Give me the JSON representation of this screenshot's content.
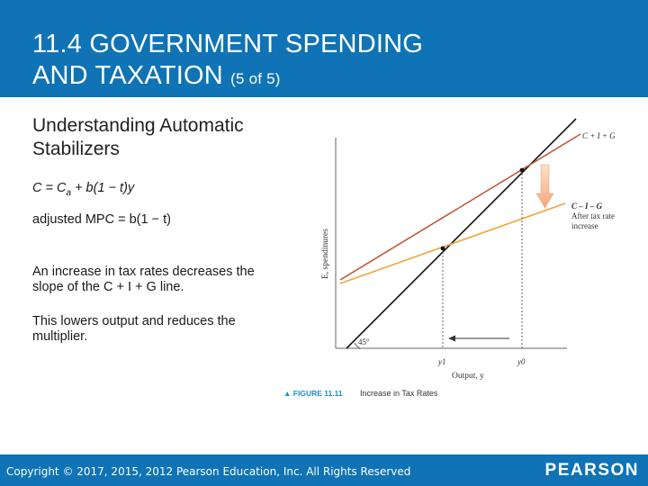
{
  "slide": {
    "title_line1": "11.4 GOVERNMENT SPENDING",
    "title_line2": "AND TAXATION",
    "title_suffix": "(5 of 5)",
    "heading": "Understanding Automatic Stabilizers",
    "formula1_prefix": "C = C",
    "formula1_sub": "a",
    "formula1_suffix": "+ b(1 − t)y",
    "formula2": "adjusted MPC = b(1 − t)",
    "para1": "An increase in tax rates decreases the slope of the C + I + G line.",
    "para2": "This lowers output and reduces the multiplier."
  },
  "figure": {
    "ylabel": "E, spendinures",
    "xlabel": "Output, y",
    "line1_label": "C + I + G",
    "line2_label": "C – I – G",
    "line2_note_1": "After tax rate",
    "line2_note_2": "increase",
    "angle_label": "45°",
    "tick_y1": "y1",
    "tick_y0": "y0",
    "caption_label": "▲ FIGURE 11.11",
    "caption_text": "Increase in Tax Rates"
  },
  "footer": {
    "copyright": "Copyright © 2017, 2015, 2012 Pearson Education, Inc. All Rights Reserved",
    "brand": "PEARSON"
  },
  "colors": {
    "header": "#0f73b5",
    "line_original": "#c0593b",
    "line_after_tax": "#f0a43a",
    "arrow_fill": "#f7c6a3"
  }
}
